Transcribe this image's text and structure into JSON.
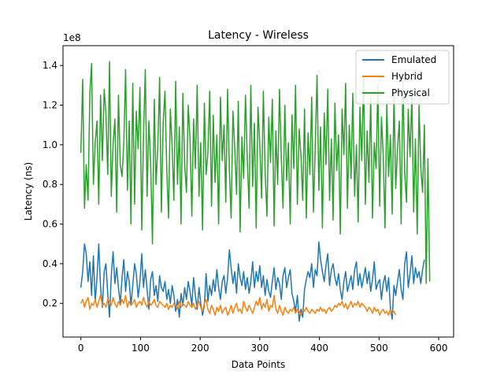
{
  "chart_data": {
    "type": "line",
    "title": "Latency - Wireless",
    "xlabel": "Data Points",
    "ylabel": "Latency (ns)",
    "y_offset_label": "1e8",
    "xlim": [
      -30,
      625
    ],
    "ylim": [
      3000000,
      150000000
    ],
    "x_ticks": [
      0,
      100,
      200,
      300,
      400,
      500,
      600
    ],
    "x_tick_labels": [
      "0",
      "100",
      "200",
      "300",
      "400",
      "500",
      "600"
    ],
    "y_ticks": [
      20000000,
      40000000,
      60000000,
      80000000,
      100000000,
      120000000,
      140000000
    ],
    "y_tick_labels": [
      "0.2",
      "0.4",
      "0.6",
      "0.8",
      "1.0",
      "1.2",
      "1.4"
    ],
    "grid": false,
    "legend_position": "top-right",
    "series": [
      {
        "name": "Emulated",
        "color": "#1f77b4",
        "x_start": 0,
        "x_step": 3,
        "values": [
          28000000,
          36000000,
          50000000,
          45000000,
          31000000,
          41000000,
          24000000,
          44000000,
          21000000,
          33000000,
          50000000,
          28000000,
          18000000,
          36000000,
          40000000,
          25000000,
          13000000,
          34000000,
          46000000,
          30000000,
          38000000,
          28000000,
          20000000,
          33000000,
          42000000,
          26000000,
          36000000,
          31000000,
          19000000,
          29000000,
          40000000,
          35000000,
          23000000,
          31000000,
          45000000,
          28000000,
          37000000,
          27000000,
          17000000,
          32000000,
          36000000,
          24000000,
          29000000,
          21000000,
          34000000,
          28000000,
          26000000,
          31000000,
          22000000,
          27000000,
          20000000,
          29000000,
          24000000,
          16000000,
          22000000,
          13000000,
          25000000,
          19000000,
          28000000,
          22000000,
          31000000,
          26000000,
          19000000,
          33000000,
          24000000,
          17000000,
          28000000,
          20000000,
          14000000,
          19000000,
          35000000,
          21000000,
          29000000,
          24000000,
          32000000,
          26000000,
          37000000,
          28000000,
          22000000,
          31000000,
          34000000,
          25000000,
          33000000,
          47000000,
          38000000,
          30000000,
          36000000,
          25000000,
          40000000,
          33000000,
          29000000,
          36000000,
          27000000,
          33000000,
          25000000,
          31000000,
          41000000,
          28000000,
          36000000,
          31000000,
          39000000,
          28000000,
          34000000,
          24000000,
          32000000,
          26000000,
          23000000,
          31000000,
          38000000,
          27000000,
          33000000,
          30000000,
          22000000,
          34000000,
          38000000,
          28000000,
          33000000,
          37000000,
          25000000,
          21000000,
          16000000,
          24000000,
          11000000,
          17000000,
          13000000,
          27000000,
          32000000,
          36000000,
          33000000,
          40000000,
          28000000,
          37000000,
          34000000,
          51000000,
          42000000,
          36000000,
          31000000,
          39000000,
          45000000,
          29000000,
          37000000,
          40000000,
          33000000,
          29000000,
          35000000,
          27000000,
          22000000,
          31000000,
          36000000,
          26000000,
          30000000,
          34000000,
          27000000,
          37000000,
          41000000,
          29000000,
          35000000,
          28000000,
          33000000,
          38000000,
          30000000,
          36000000,
          26000000,
          32000000,
          41000000,
          27000000,
          30000000,
          32000000,
          22000000,
          30000000,
          34000000,
          26000000,
          33000000,
          18000000,
          12000000,
          29000000,
          24000000,
          31000000,
          37000000,
          27000000,
          22000000,
          40000000,
          46000000,
          28000000,
          35000000,
          44000000,
          30000000,
          38000000,
          33000000,
          36000000,
          30000000,
          37000000,
          42000000
        ]
      },
      {
        "name": "Hybrid",
        "color": "#ff7f0e",
        "x_start": 0,
        "x_step": 3,
        "values": [
          20000000,
          22000000,
          18000000,
          21000000,
          23000000,
          17000000,
          20000000,
          19000000,
          22000000,
          18000000,
          21000000,
          24000000,
          19000000,
          20000000,
          18000000,
          22000000,
          21000000,
          19000000,
          23000000,
          20000000,
          18000000,
          21000000,
          19000000,
          22000000,
          20000000,
          24000000,
          18000000,
          21000000,
          19000000,
          20000000,
          22000000,
          18000000,
          20000000,
          21000000,
          19000000,
          23000000,
          20000000,
          18000000,
          21000000,
          19000000,
          20000000,
          22000000,
          19000000,
          18000000,
          21000000,
          20000000,
          19000000,
          18000000,
          20000000,
          17000000,
          19000000,
          18000000,
          20000000,
          19000000,
          17000000,
          21000000,
          18000000,
          20000000,
          19000000,
          18000000,
          21000000,
          19000000,
          18000000,
          20000000,
          17000000,
          19000000,
          21000000,
          18000000,
          16000000,
          20000000,
          22000000,
          17000000,
          15000000,
          19000000,
          17000000,
          14000000,
          18000000,
          16000000,
          19000000,
          15000000,
          17000000,
          18000000,
          14000000,
          16000000,
          19000000,
          15000000,
          18000000,
          20000000,
          16000000,
          17000000,
          15000000,
          21000000,
          18000000,
          16000000,
          19000000,
          17000000,
          15000000,
          18000000,
          21000000,
          19000000,
          23000000,
          17000000,
          20000000,
          18000000,
          22000000,
          16000000,
          19000000,
          18000000,
          24000000,
          17000000,
          15000000,
          19000000,
          16000000,
          14000000,
          18000000,
          16000000,
          15000000,
          17000000,
          16000000,
          18000000,
          15000000,
          17000000,
          16000000,
          14000000,
          17000000,
          16000000,
          18000000,
          16000000,
          15000000,
          17000000,
          16000000,
          15000000,
          17000000,
          16000000,
          18000000,
          16000000,
          17000000,
          15000000,
          17000000,
          18000000,
          16000000,
          17000000,
          19000000,
          18000000,
          20000000,
          19000000,
          21000000,
          18000000,
          20000000,
          17000000,
          19000000,
          21000000,
          18000000,
          20000000,
          19000000,
          21000000,
          18000000,
          20000000,
          19000000,
          18000000,
          16000000,
          18000000,
          17000000,
          15000000,
          18000000,
          16000000,
          17000000,
          14000000,
          16000000,
          17000000,
          15000000,
          16000000,
          14000000,
          17000000,
          15000000,
          16000000,
          14000000
        ]
      },
      {
        "name": "Physical",
        "color": "#2ca02c",
        "x_start": 0,
        "x_step": 3,
        "values": [
          96000000,
          133000000,
          68000000,
          90000000,
          72000000,
          126000000,
          141000000,
          80000000,
          101000000,
          112000000,
          70000000,
          125000000,
          92000000,
          128000000,
          116000000,
          85000000,
          142000000,
          74000000,
          100000000,
          113000000,
          66000000,
          125000000,
          90000000,
          84000000,
          101000000,
          138000000,
          77000000,
          112000000,
          60000000,
          131000000,
          70000000,
          117000000,
          98000000,
          129000000,
          57000000,
          104000000,
          138000000,
          74000000,
          112000000,
          91000000,
          50000000,
          123000000,
          80000000,
          99000000,
          134000000,
          66000000,
          111000000,
          127000000,
          87000000,
          63000000,
          118000000,
          99000000,
          72000000,
          132000000,
          80000000,
          109000000,
          60000000,
          126000000,
          90000000,
          76000000,
          120000000,
          103000000,
          64000000,
          113000000,
          88000000,
          130000000,
          74000000,
          101000000,
          57000000,
          121000000,
          85000000,
          96000000,
          127000000,
          69000000,
          115000000,
          81000000,
          105000000,
          60000000,
          124000000,
          92000000,
          110000000,
          71000000,
          128000000,
          87000000,
          63000000,
          117000000,
          98000000,
          75000000,
          122000000,
          56000000,
          104000000,
          83000000,
          125000000,
          93000000,
          68000000,
          130000000,
          79000000,
          111000000,
          58000000,
          119000000,
          100000000,
          73000000,
          127000000,
          86000000,
          64000000,
          114000000,
          91000000,
          123000000,
          59000000,
          107000000,
          80000000,
          128000000,
          94000000,
          68000000,
          120000000,
          82000000,
          101000000,
          60000000,
          115000000,
          88000000,
          130000000,
          70000000,
          108000000,
          95000000,
          72000000,
          118000000,
          63000000,
          106000000,
          85000000,
          124000000,
          66000000,
          99000000,
          135000000,
          77000000,
          109000000,
          58000000,
          116000000,
          90000000,
          128000000,
          72000000,
          103000000,
          62000000,
          121000000,
          87000000,
          105000000,
          55000000,
          118000000,
          95000000,
          131000000,
          68000000,
          110000000,
          83000000,
          126000000,
          74000000,
          100000000,
          61000000,
          119000000,
          92000000,
          135000000,
          70000000,
          107000000,
          81000000,
          124000000,
          63000000,
          101000000,
          88000000,
          130000000,
          69000000,
          114000000,
          95000000,
          58000000,
          121000000,
          84000000,
          105000000,
          65000000,
          126000000,
          78000000,
          98000000,
          112000000,
          60000000,
          134000000,
          86000000,
          71000000,
          118000000,
          94000000,
          125000000,
          66000000,
          103000000,
          55000000,
          120000000,
          88000000,
          76000000,
          110000000,
          30000000,
          93000000,
          31000000
        ]
      }
    ]
  }
}
